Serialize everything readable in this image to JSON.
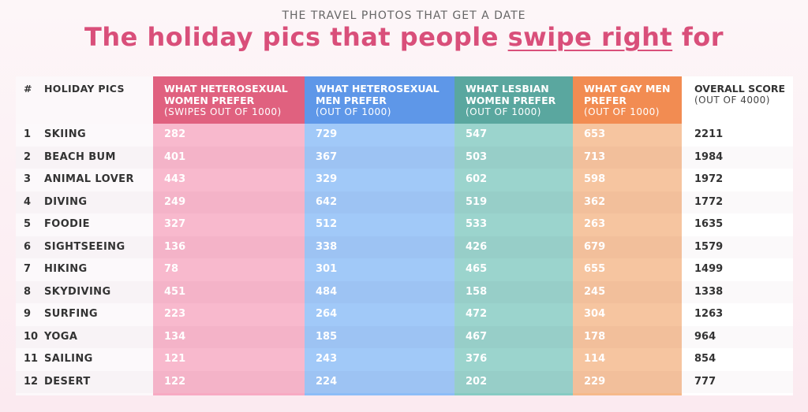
{
  "header": {
    "subtitle": "THE TRAVEL PHOTOS THAT GET A DATE",
    "title_before": "The holiday pics that people ",
    "title_underlined": "swipe right",
    "title_after": " for"
  },
  "chart_data": {
    "type": "table",
    "columns": [
      {
        "label": "#"
      },
      {
        "label": "HOLIDAY PICS"
      },
      {
        "label": "WHAT HETEROSEXUAL WOMEN PREFER",
        "sub": "(SWIPES OUT OF 1000)",
        "color": "#e0617f"
      },
      {
        "label": "WHAT HETEROSEXUAL MEN PREFER",
        "sub": "(OUT OF 1000)",
        "color": "#5e97e8"
      },
      {
        "label": "WHAT LESBIAN WOMEN PREFER",
        "sub": "(OUT OF 1000)",
        "color": "#5aa79f"
      },
      {
        "label": "WHAT GAY MEN PREFER",
        "sub": "(OUT OF 1000)",
        "color": "#f28c52"
      },
      {
        "label": "OVERALL SCORE",
        "sub": "(OUT OF 4000)"
      }
    ],
    "rows": [
      {
        "rank": "1",
        "name": "SKIING",
        "hw": "282",
        "hm": "729",
        "lw": "547",
        "gm": "653",
        "overall": "2211"
      },
      {
        "rank": "2",
        "name": "BEACH BUM",
        "hw": "401",
        "hm": "367",
        "lw": "503",
        "gm": "713",
        "overall": "1984"
      },
      {
        "rank": "3",
        "name": "ANIMAL LOVER",
        "hw": "443",
        "hm": "329",
        "lw": "602",
        "gm": "598",
        "overall": "1972"
      },
      {
        "rank": "4",
        "name": "DIVING",
        "hw": "249",
        "hm": "642",
        "lw": "519",
        "gm": "362",
        "overall": "1772"
      },
      {
        "rank": "5",
        "name": "FOODIE",
        "hw": "327",
        "hm": "512",
        "lw": "533",
        "gm": "263",
        "overall": "1635"
      },
      {
        "rank": "6",
        "name": "SIGHTSEEING",
        "hw": "136",
        "hm": "338",
        "lw": "426",
        "gm": "679",
        "overall": "1579"
      },
      {
        "rank": "7",
        "name": "HIKING",
        "hw": "78",
        "hm": "301",
        "lw": "465",
        "gm": "655",
        "overall": "1499"
      },
      {
        "rank": "8",
        "name": "SKYDIVING",
        "hw": "451",
        "hm": "484",
        "lw": "158",
        "gm": "245",
        "overall": "1338"
      },
      {
        "rank": "9",
        "name": "SURFING",
        "hw": "223",
        "hm": "264",
        "lw": "472",
        "gm": "304",
        "overall": "1263"
      },
      {
        "rank": "10",
        "name": "YOGA",
        "hw": "134",
        "hm": "185",
        "lw": "467",
        "gm": "178",
        "overall": "964"
      },
      {
        "rank": "11",
        "name": "SAILING",
        "hw": "121",
        "hm": "243",
        "lw": "376",
        "gm": "114",
        "overall": "854"
      },
      {
        "rank": "12",
        "name": "DESERT",
        "hw": "122",
        "hm": "224",
        "lw": "202",
        "gm": "229",
        "overall": "777"
      }
    ]
  }
}
